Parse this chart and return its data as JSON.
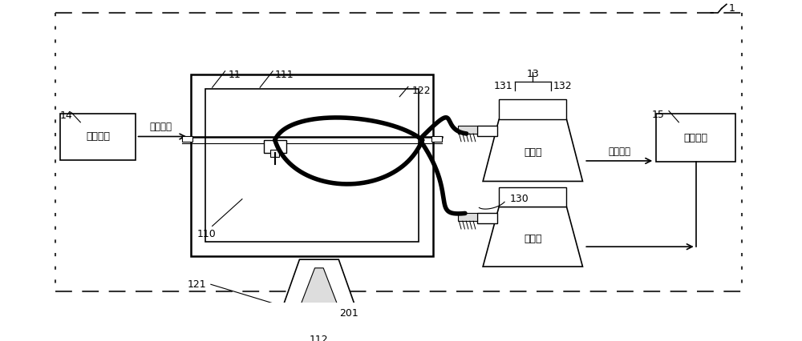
{
  "bg": "#ffffff",
  "K": "#000000",
  "label_1": "1",
  "label_11": "11",
  "label_111": "111",
  "label_110": "110",
  "label_112": "112",
  "label_121": "121",
  "label_122": "122",
  "label_13": "13",
  "label_131": "131",
  "label_132": "132",
  "label_130": "130",
  "label_14": "14",
  "label_15": "15",
  "label_201": "201",
  "text_terminal": "终端设备",
  "text_pos_ctrl": "位置控制",
  "text_liq_ctrl": "进液控制",
  "text_microctrl": "微控制器",
  "text_pump": "进液泵"
}
